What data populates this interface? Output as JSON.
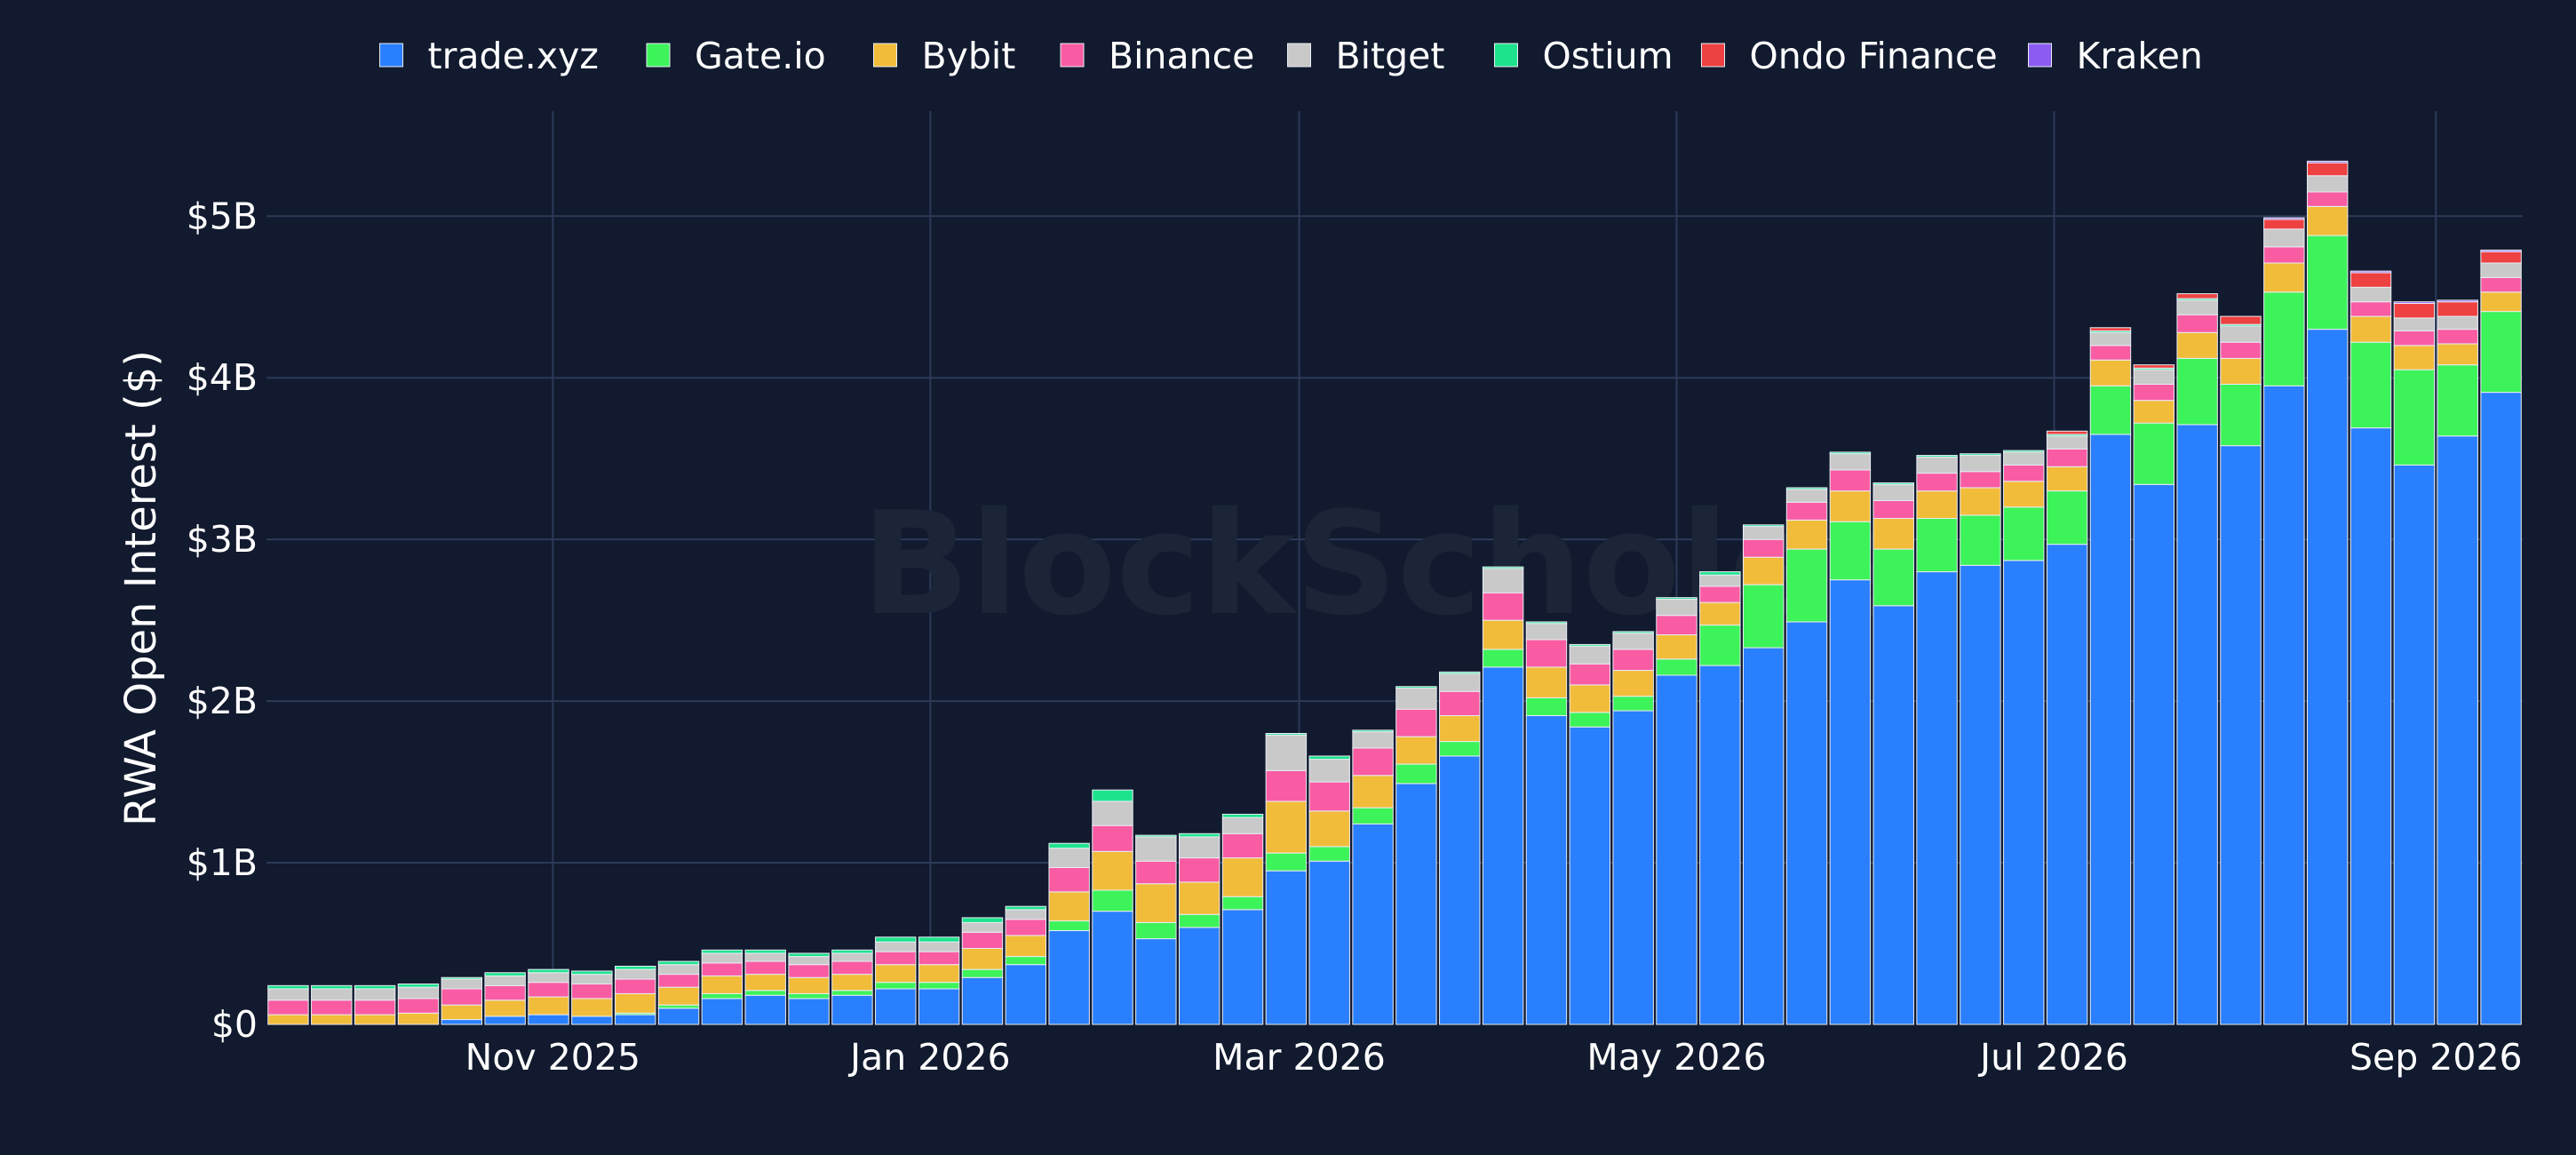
{
  "chart_data": {
    "type": "bar",
    "stacked": true,
    "ylabel": "RWA Open Interest ($)",
    "xlabel": "",
    "watermark": "BlockScholes",
    "ylim": [
      0,
      5650000000
    ],
    "y_ticks": [
      {
        "value": 0,
        "label": "$0"
      },
      {
        "value": 1000000000,
        "label": "$1B"
      },
      {
        "value": 2000000000,
        "label": "$2B"
      },
      {
        "value": 3000000000,
        "label": "$3B"
      },
      {
        "value": 4000000000,
        "label": "$4B"
      },
      {
        "value": 5000000000,
        "label": "$5B"
      }
    ],
    "x_ticks": [
      {
        "index": 6.6,
        "label": "Nov 2025"
      },
      {
        "index": 15.3,
        "label": "Jan 2026"
      },
      {
        "index": 23.8,
        "label": "Mar 2026"
      },
      {
        "index": 32.5,
        "label": "May 2026"
      },
      {
        "index": 41.2,
        "label": "Jul 2026"
      },
      {
        "index": 50.0,
        "label": "Sep 2026"
      }
    ],
    "grid": true,
    "legend_position": "top-center",
    "background": "#111a2e",
    "grid_color": "#2c3a58",
    "series": [
      {
        "name": "trade.xyz",
        "color": "#2a7fff",
        "values": [
          0,
          0,
          0,
          0,
          0.03,
          0.05,
          0.06,
          0.05,
          0.06,
          0.1,
          0.16,
          0.18,
          0.16,
          0.18,
          0.22,
          0.22,
          0.29,
          0.37,
          0.58,
          0.7,
          0.53,
          0.6,
          0.71,
          0.95,
          1.01,
          1.24,
          1.49,
          1.66,
          2.21,
          1.91,
          1.84,
          1.94,
          2.16,
          2.22,
          2.33,
          2.49,
          2.75,
          2.59,
          2.8,
          2.84,
          2.87,
          2.97,
          3.65,
          3.34,
          3.71,
          3.58,
          3.95,
          4.3,
          3.69,
          3.46,
          3.64,
          3.91
        ]
      },
      {
        "name": "Gate.io",
        "color": "#3df35a",
        "values": [
          0,
          0,
          0,
          0,
          0,
          0,
          0,
          0,
          0.01,
          0.02,
          0.03,
          0.03,
          0.03,
          0.03,
          0.04,
          0.04,
          0.05,
          0.05,
          0.06,
          0.13,
          0.1,
          0.08,
          0.08,
          0.11,
          0.09,
          0.1,
          0.12,
          0.09,
          0.11,
          0.11,
          0.09,
          0.09,
          0.1,
          0.25,
          0.39,
          0.45,
          0.36,
          0.35,
          0.33,
          0.31,
          0.33,
          0.33,
          0.3,
          0.38,
          0.41,
          0.38,
          0.58,
          0.58,
          0.53,
          0.59,
          0.44,
          0.5
        ]
      },
      {
        "name": "Bybit",
        "color": "#f2bc3b",
        "values": [
          0.06,
          0.06,
          0.06,
          0.07,
          0.09,
          0.1,
          0.11,
          0.11,
          0.12,
          0.11,
          0.11,
          0.1,
          0.1,
          0.1,
          0.11,
          0.11,
          0.13,
          0.13,
          0.18,
          0.24,
          0.24,
          0.2,
          0.24,
          0.32,
          0.22,
          0.2,
          0.17,
          0.16,
          0.18,
          0.19,
          0.17,
          0.16,
          0.15,
          0.14,
          0.17,
          0.18,
          0.19,
          0.19,
          0.17,
          0.17,
          0.16,
          0.15,
          0.16,
          0.14,
          0.16,
          0.16,
          0.18,
          0.18,
          0.16,
          0.15,
          0.13,
          0.12
        ]
      },
      {
        "name": "Binance",
        "color": "#f95ca3",
        "values": [
          0.09,
          0.09,
          0.09,
          0.09,
          0.1,
          0.09,
          0.09,
          0.09,
          0.09,
          0.08,
          0.08,
          0.08,
          0.08,
          0.08,
          0.08,
          0.08,
          0.1,
          0.1,
          0.15,
          0.16,
          0.14,
          0.15,
          0.15,
          0.19,
          0.18,
          0.17,
          0.17,
          0.15,
          0.17,
          0.17,
          0.13,
          0.13,
          0.12,
          0.1,
          0.11,
          0.11,
          0.13,
          0.11,
          0.11,
          0.1,
          0.1,
          0.11,
          0.09,
          0.1,
          0.11,
          0.1,
          0.1,
          0.09,
          0.09,
          0.09,
          0.09,
          0.09
        ]
      },
      {
        "name": "Bitget",
        "color": "#c9c9c9",
        "values": [
          0.07,
          0.07,
          0.07,
          0.07,
          0.06,
          0.06,
          0.06,
          0.06,
          0.06,
          0.06,
          0.06,
          0.05,
          0.05,
          0.05,
          0.06,
          0.06,
          0.06,
          0.06,
          0.12,
          0.15,
          0.15,
          0.13,
          0.1,
          0.22,
          0.14,
          0.1,
          0.13,
          0.11,
          0.15,
          0.1,
          0.11,
          0.1,
          0.1,
          0.07,
          0.08,
          0.08,
          0.1,
          0.1,
          0.1,
          0.1,
          0.08,
          0.08,
          0.08,
          0.09,
          0.09,
          0.1,
          0.11,
          0.1,
          0.09,
          0.08,
          0.08,
          0.09
        ]
      },
      {
        "name": "Ostium",
        "color": "#1ee38e",
        "values": [
          0.02,
          0.02,
          0.02,
          0.02,
          0.01,
          0.02,
          0.02,
          0.02,
          0.02,
          0.02,
          0.02,
          0.02,
          0.02,
          0.02,
          0.03,
          0.03,
          0.03,
          0.02,
          0.03,
          0.07,
          0.01,
          0.02,
          0.02,
          0.01,
          0.02,
          0.01,
          0.01,
          0.01,
          0.01,
          0.01,
          0.01,
          0.01,
          0.01,
          0.02,
          0.01,
          0.01,
          0.01,
          0.01,
          0.01,
          0.01,
          0.01,
          0.01,
          0.01,
          0.01,
          0.01,
          0.01,
          0,
          0,
          0,
          0,
          0,
          0
        ]
      },
      {
        "name": "Ondo Finance",
        "color": "#ee4141",
        "values": [
          0,
          0,
          0,
          0,
          0,
          0,
          0,
          0,
          0,
          0,
          0,
          0,
          0,
          0,
          0,
          0,
          0,
          0,
          0,
          0,
          0,
          0,
          0,
          0,
          0,
          0,
          0,
          0,
          0,
          0,
          0,
          0,
          0,
          0,
          0,
          0,
          0,
          0,
          0,
          0,
          0,
          0.02,
          0.02,
          0.02,
          0.03,
          0.05,
          0.06,
          0.08,
          0.09,
          0.09,
          0.09,
          0.07
        ]
      },
      {
        "name": "Kraken",
        "color": "#8c5cf2",
        "values": [
          0,
          0,
          0,
          0,
          0,
          0,
          0,
          0,
          0,
          0,
          0,
          0,
          0,
          0,
          0,
          0,
          0,
          0,
          0,
          0,
          0,
          0,
          0,
          0,
          0,
          0,
          0,
          0,
          0,
          0,
          0,
          0,
          0,
          0,
          0,
          0,
          0,
          0,
          0,
          0,
          0,
          0,
          0,
          0,
          0,
          0,
          0.01,
          0.01,
          0.01,
          0.01,
          0.01,
          0.01
        ]
      }
    ],
    "value_unit": "billions USD"
  }
}
